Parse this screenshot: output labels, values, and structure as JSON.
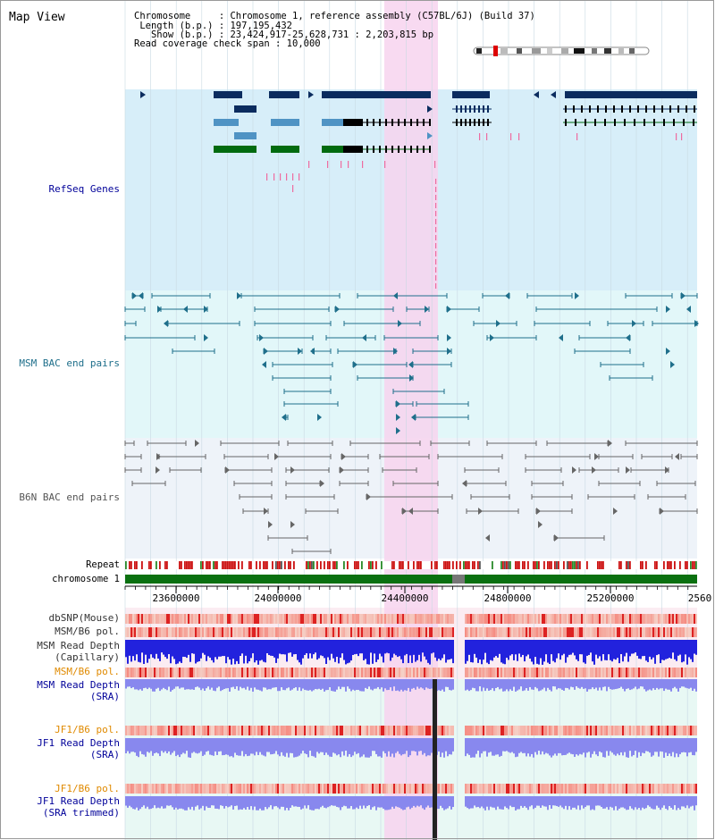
{
  "header": {
    "title": "Map View",
    "info_lines": [
      "Chromosome     : Chromosome 1, reference assembly (C57BL/6J) (Build 37)",
      " Length (b.p.) : 197,195,432",
      "   Show (b.p.) : 23,424,917-25,628,731 : 2,203,815 bp",
      "Read coverage check span : 10,000"
    ]
  },
  "tracks": {
    "refseq": "RefSeq Genes",
    "msm_bac": "MSM BAC end pairs",
    "b6n_bac": "B6N BAC end pairs",
    "repeat": "Repeat",
    "chromosome": "chromosome 1",
    "dbsnp": "dbSNP(Mouse)",
    "msm_b6_pol_1": "MSM/B6 pol.",
    "msm_read_depth_cap_1": "MSM Read Depth",
    "msm_read_depth_cap_2": "(Capillary)",
    "msm_b6_pol_2": "MSM/B6 pol.",
    "msm_read_depth_sra_1": "MSM Read Depth",
    "msm_read_depth_sra_2": "(SRA)",
    "jf1_b6_pol_1": "JF1/B6 pol.",
    "jf1_read_depth_sra_1": "JF1 Read Depth",
    "jf1_read_depth_sra_2": "(SRA)",
    "jf1_b6_pol_2": "JF1/B6 pol.",
    "jf1_read_depth_trim_1": "JF1 Read Depth",
    "jf1_read_depth_trim_2": "(SRA trimmed)"
  },
  "axis": {
    "ticks": [
      "23600000",
      "24000000",
      "24400000",
      "24800000",
      "25200000",
      "2560"
    ]
  },
  "colors": {
    "refseq_bg": "#d7eef9",
    "msm_bg": "#e2f7f9",
    "b6n_bg": "#eef3f9",
    "highlight": "#f7d3ee",
    "gene_navy": "#0b2c5f",
    "gene_mid": "#4f93c4",
    "gene_green": "#016b10",
    "msm_line": "#1f6f8b",
    "b6n_line": "#666666",
    "label_blue": "#000099",
    "label_orange": "#e08a00",
    "chromosome": "#0a7010",
    "depth_blue": "#2222dd",
    "depth_sra": "#8888ee"
  }
}
